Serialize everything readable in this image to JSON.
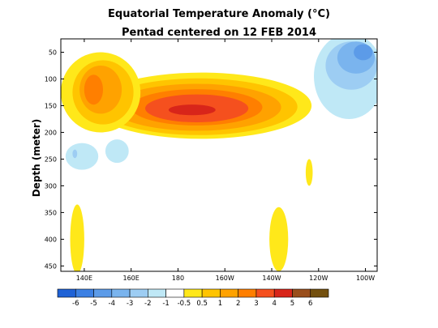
{
  "chart_data": {
    "type": "heatmap",
    "title": "Equatorial Temperature Anomaly (°C)",
    "subtitle": "Pentad centered on 12 FEB 2014",
    "xlabel": "",
    "ylabel": "Depth (meter)",
    "x_range": [
      130,
      265
    ],
    "y_range": [
      25,
      460
    ],
    "x_ticks": [
      {
        "value": 140,
        "label": "140E"
      },
      {
        "value": 160,
        "label": "160E"
      },
      {
        "value": 180,
        "label": "180"
      },
      {
        "value": 200,
        "label": "160W"
      },
      {
        "value": 220,
        "label": "140W"
      },
      {
        "value": 240,
        "label": "120W"
      },
      {
        "value": 260,
        "label": "100W"
      }
    ],
    "y_ticks": [
      {
        "value": 50,
        "label": "50"
      },
      {
        "value": 100,
        "label": "100"
      },
      {
        "value": 150,
        "label": "150"
      },
      {
        "value": 200,
        "label": "200"
      },
      {
        "value": 250,
        "label": "250"
      },
      {
        "value": 300,
        "label": "300"
      },
      {
        "value": 350,
        "label": "350"
      },
      {
        "value": 400,
        "label": "400"
      },
      {
        "value": 450,
        "label": "450"
      }
    ],
    "colorbar": {
      "colors": [
        "#1f62d6",
        "#3c80e3",
        "#5c9be8",
        "#7ab4ee",
        "#9dcdf3",
        "#bfe8f6",
        "#ffffff",
        "#ffe81a",
        "#ffc400",
        "#ffa200",
        "#ff7f00",
        "#f5501e",
        "#d8251a",
        "#9a4f1c",
        "#73500e"
      ],
      "labels": [
        "-6",
        "-5",
        "-4",
        "-3",
        "-2",
        "-1",
        "-0.5",
        "0.5",
        "1",
        "2",
        "3",
        "4",
        "5",
        "6"
      ]
    },
    "features": [
      {
        "name": "warm-core",
        "sign": "positive",
        "peak": 5,
        "levels": [
          {
            "level": 0.5,
            "color": "#ffe81a",
            "cx": 190,
            "cy": 150,
            "rx": 47,
            "ry": 62
          },
          {
            "level": 1,
            "color": "#ffc400",
            "cx": 189,
            "cy": 152,
            "rx": 42,
            "ry": 53
          },
          {
            "level": 2,
            "color": "#ffa200",
            "cx": 188,
            "cy": 153,
            "rx": 36,
            "ry": 44
          },
          {
            "level": 3,
            "color": "#ff7f00",
            "cx": 188,
            "cy": 153,
            "rx": 28,
            "ry": 34
          },
          {
            "level": 4,
            "color": "#f5501e",
            "cx": 188,
            "cy": 155,
            "rx": 22,
            "ry": 26
          },
          {
            "level": 5,
            "color": "#d8251a",
            "cx": 186,
            "cy": 158,
            "rx": 10,
            "ry": 10
          }
        ]
      },
      {
        "name": "western-warm-lobe",
        "sign": "positive",
        "peak": 3,
        "levels": [
          {
            "level": 0.5,
            "color": "#ffe81a",
            "cx": 147,
            "cy": 125,
            "rx": 17,
            "ry": 75
          },
          {
            "level": 1,
            "color": "#ffc400",
            "cx": 148,
            "cy": 125,
            "rx": 13,
            "ry": 60
          },
          {
            "level": 2,
            "color": "#ffa200",
            "cx": 147,
            "cy": 120,
            "rx": 9,
            "ry": 45
          },
          {
            "level": 3,
            "color": "#ff7f00",
            "cx": 144,
            "cy": 120,
            "rx": 4,
            "ry": 28
          }
        ]
      },
      {
        "name": "warm-tongue-west-deep",
        "sign": "positive",
        "peak": 0.5,
        "levels": [
          {
            "level": 0.5,
            "color": "#ffe81a",
            "cx": 137,
            "cy": 400,
            "rx": 3,
            "ry": 65
          }
        ]
      },
      {
        "name": "warm-tongue-east-deep",
        "sign": "positive",
        "peak": 0.5,
        "levels": [
          {
            "level": 0.5,
            "color": "#ffe81a",
            "cx": 223,
            "cy": 400,
            "rx": 4,
            "ry": 60
          }
        ]
      },
      {
        "name": "warm-patch-120w",
        "sign": "positive",
        "peak": 0.5,
        "levels": [
          {
            "level": 0.5,
            "color": "#ffe81a",
            "cx": 236,
            "cy": 275,
            "rx": 1.5,
            "ry": 25
          }
        ]
      },
      {
        "name": "eastern-cold-pool",
        "sign": "negative",
        "peak": -3,
        "levels": [
          {
            "level": -0.5,
            "color": "#bfe8f6",
            "cx": 253,
            "cy": 95,
            "rx": 15,
            "ry": 80
          },
          {
            "level": -1,
            "color": "#9dcdf3",
            "cx": 254,
            "cy": 75,
            "rx": 11,
            "ry": 45
          },
          {
            "level": -2,
            "color": "#7ab4ee",
            "cx": 256,
            "cy": 60,
            "rx": 8,
            "ry": 30
          },
          {
            "level": -3,
            "color": "#5c9be8",
            "cx": 259,
            "cy": 50,
            "rx": 4,
            "ry": 15
          }
        ]
      },
      {
        "name": "western-cold-patch",
        "sign": "negative",
        "peak": -1,
        "levels": [
          {
            "level": -0.5,
            "color": "#bfe8f6",
            "cx": 139,
            "cy": 245,
            "rx": 7,
            "ry": 25
          },
          {
            "level": -1,
            "color": "#9dcdf3",
            "cx": 136,
            "cy": 240,
            "rx": 1,
            "ry": 8
          }
        ]
      },
      {
        "name": "cold-patch-160e",
        "sign": "negative",
        "peak": -0.5,
        "levels": [
          {
            "level": -0.5,
            "color": "#bfe8f6",
            "cx": 154,
            "cy": 235,
            "rx": 5,
            "ry": 22
          }
        ]
      }
    ]
  }
}
